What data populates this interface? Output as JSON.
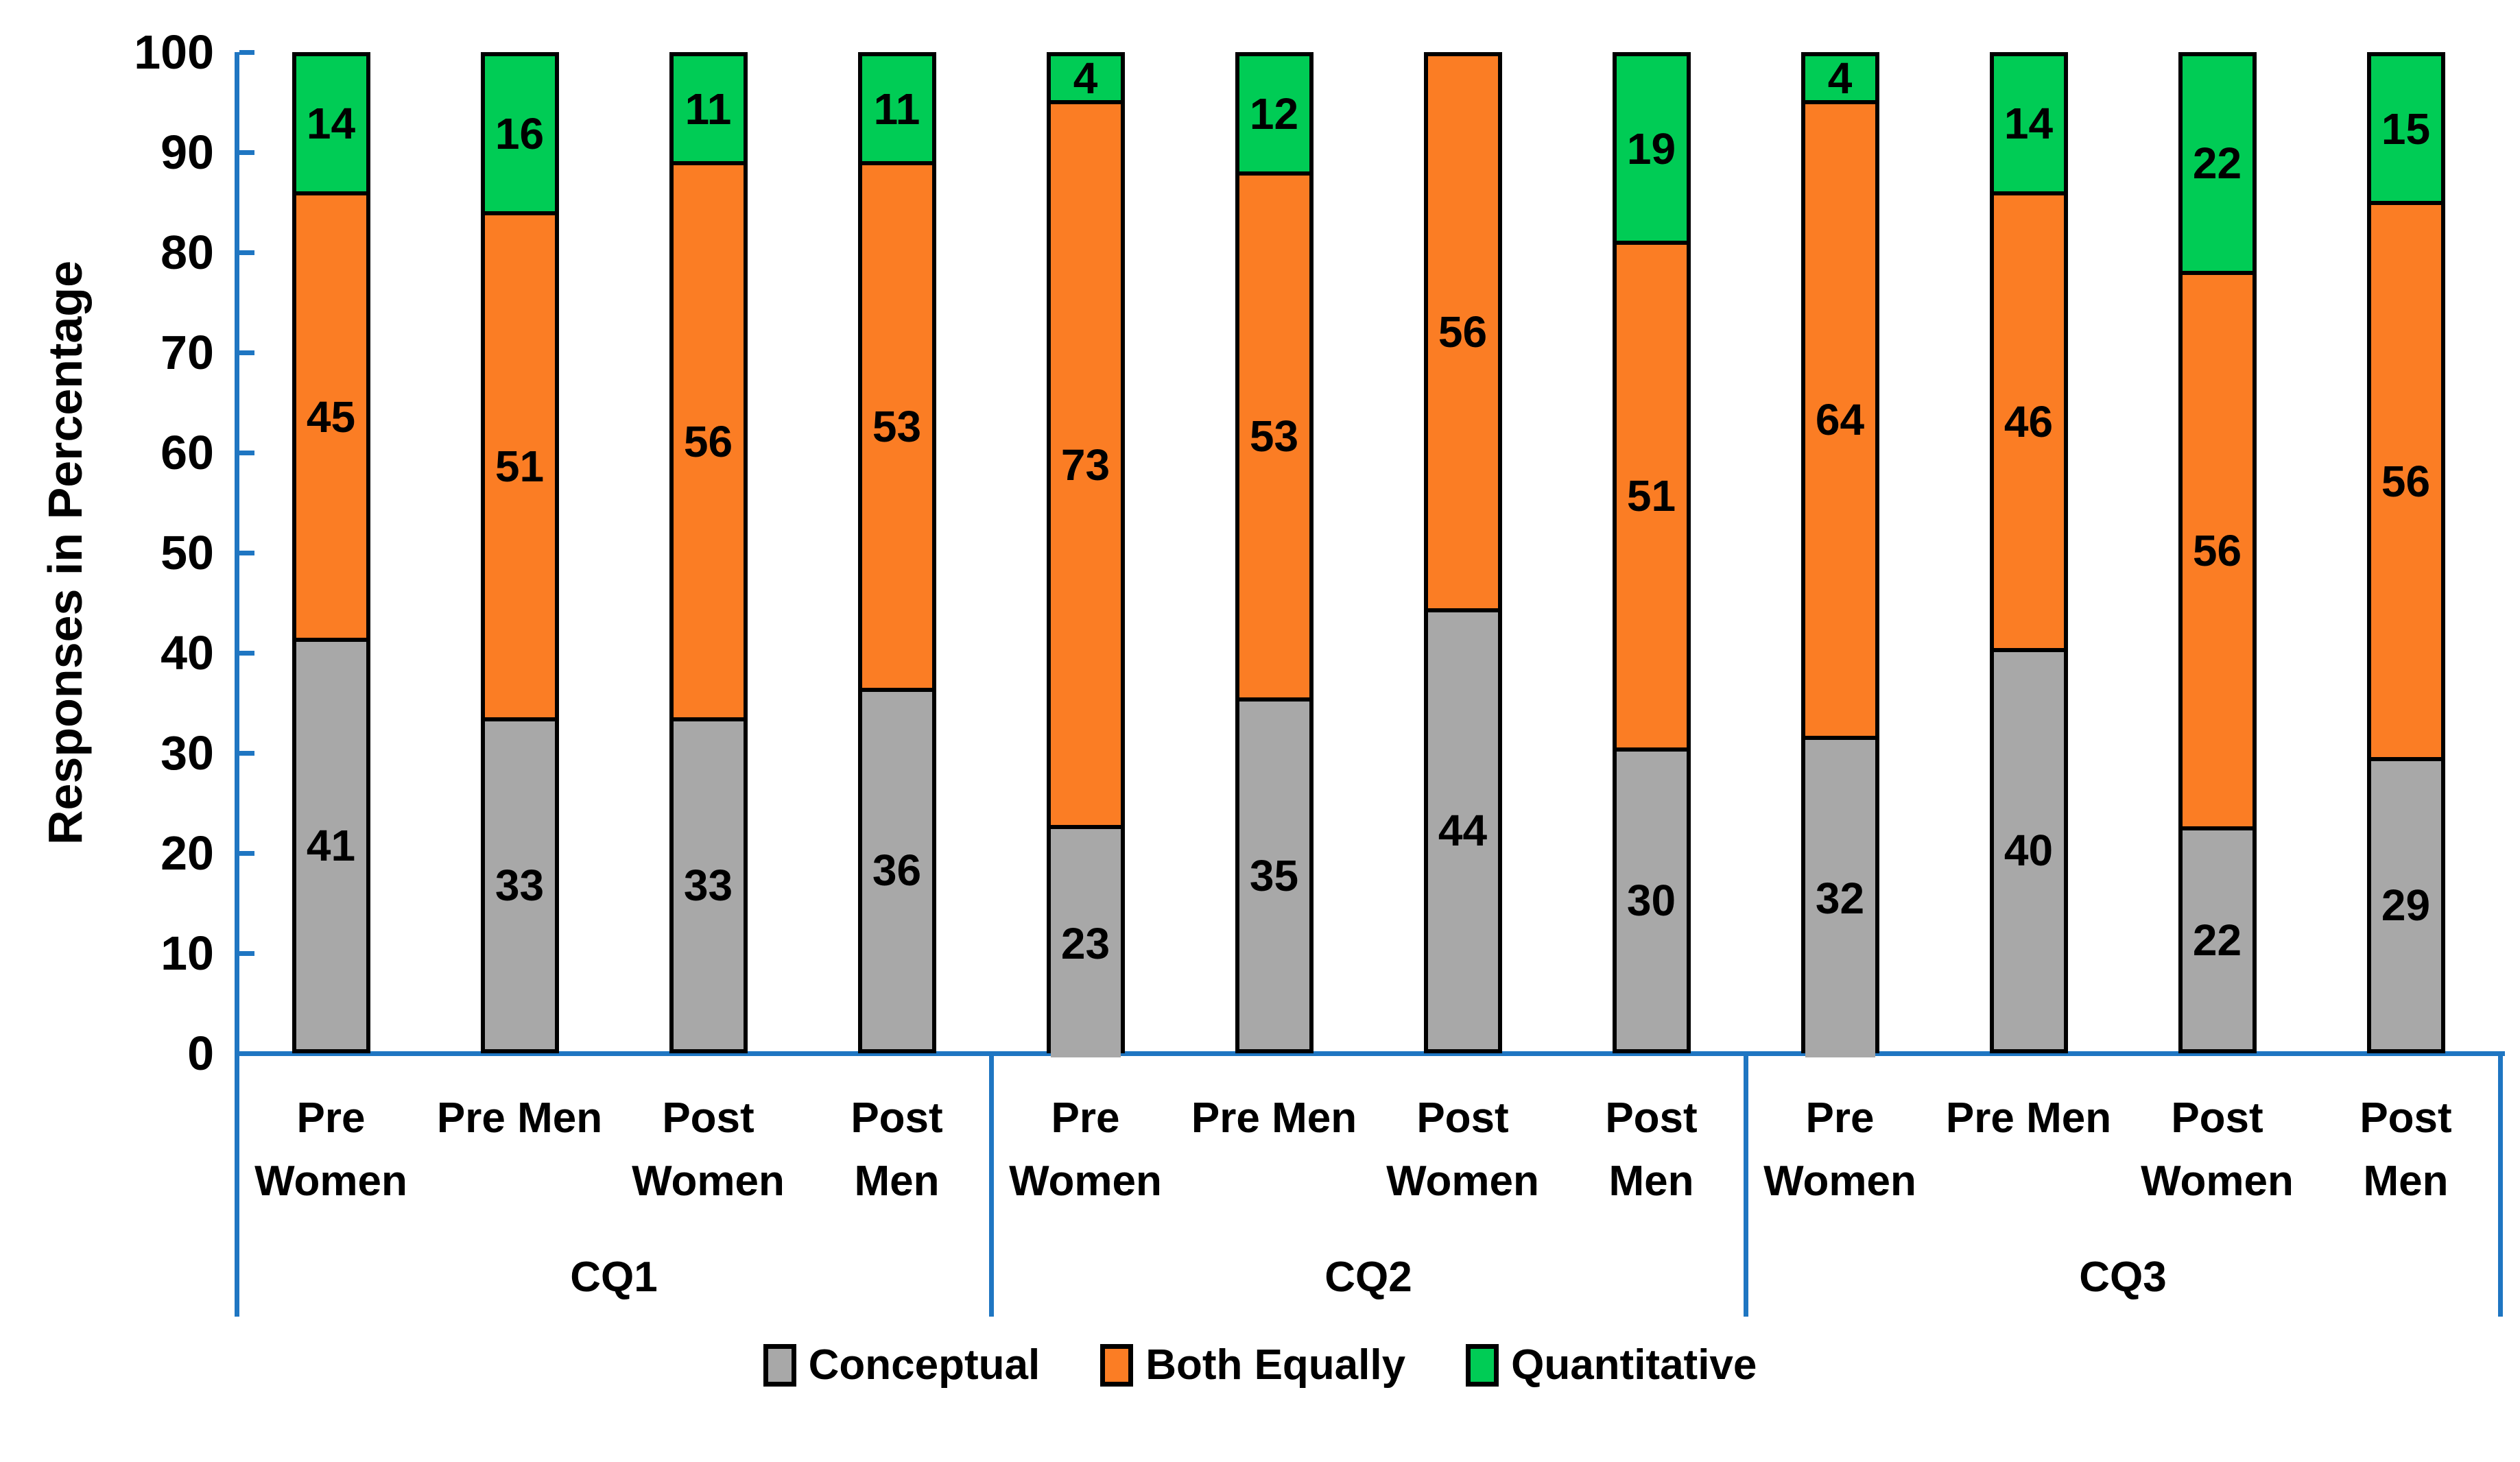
{
  "chart_data": {
    "type": "bar",
    "subtype": "stacked-percent-column",
    "title": "",
    "ylabel": "Responses in Percentage",
    "xlabel": "",
    "ylim": [
      0,
      100
    ],
    "yticks": [
      0,
      10,
      20,
      30,
      40,
      50,
      60,
      70,
      80,
      90,
      100
    ],
    "grid": false,
    "legend_position": "bottom",
    "axis_color": "#1F76C2",
    "bar_outline_color": "#000000",
    "series_names": [
      "Conceptual",
      "Both Equally",
      "Quantitative"
    ],
    "series_colors": {
      "Conceptual": "#A8A8A8",
      "Both Equally": "#FB7D24",
      "Quantitative": "#00CC55"
    },
    "legend": [
      "Conceptual",
      "Both Equally",
      "Quantitative"
    ],
    "groups": [
      {
        "label": "CQ1",
        "bars": [
          {
            "label_lines": [
              "Pre",
              "Women"
            ],
            "values": {
              "Conceptual": 41,
              "Both Equally": 45,
              "Quantitative": 14
            }
          },
          {
            "label_lines": [
              "Pre Men",
              ""
            ],
            "values": {
              "Conceptual": 33,
              "Both Equally": 51,
              "Quantitative": 16
            }
          },
          {
            "label_lines": [
              "Post",
              "Women"
            ],
            "values": {
              "Conceptual": 33,
              "Both Equally": 56,
              "Quantitative": 11
            }
          },
          {
            "label_lines": [
              "Post",
              "Men"
            ],
            "values": {
              "Conceptual": 36,
              "Both Equally": 53,
              "Quantitative": 11
            }
          }
        ]
      },
      {
        "label": "CQ2",
        "bars": [
          {
            "label_lines": [
              "Pre",
              "Women"
            ],
            "values": {
              "Conceptual": 23,
              "Both Equally": 73,
              "Quantitative": 4
            }
          },
          {
            "label_lines": [
              "Pre Men",
              ""
            ],
            "values": {
              "Conceptual": 35,
              "Both Equally": 53,
              "Quantitative": 12
            }
          },
          {
            "label_lines": [
              "Post",
              "Women"
            ],
            "values": {
              "Conceptual": 44,
              "Both Equally": 56,
              "Quantitative": 0
            }
          },
          {
            "label_lines": [
              "Post",
              "Men"
            ],
            "values": {
              "Conceptual": 30,
              "Both Equally": 51,
              "Quantitative": 19
            }
          }
        ]
      },
      {
        "label": "CQ3",
        "bars": [
          {
            "label_lines": [
              "Pre",
              "Women"
            ],
            "values": {
              "Conceptual": 32,
              "Both Equally": 64,
              "Quantitative": 4
            }
          },
          {
            "label_lines": [
              "Pre Men",
              ""
            ],
            "values": {
              "Conceptual": 40,
              "Both Equally": 46,
              "Quantitative": 14
            }
          },
          {
            "label_lines": [
              "Post",
              "Women"
            ],
            "values": {
              "Conceptual": 22,
              "Both Equally": 56,
              "Quantitative": 22
            }
          },
          {
            "label_lines": [
              "Post",
              "Men"
            ],
            "values": {
              "Conceptual": 29,
              "Both Equally": 56,
              "Quantitative": 15
            }
          }
        ]
      }
    ]
  }
}
